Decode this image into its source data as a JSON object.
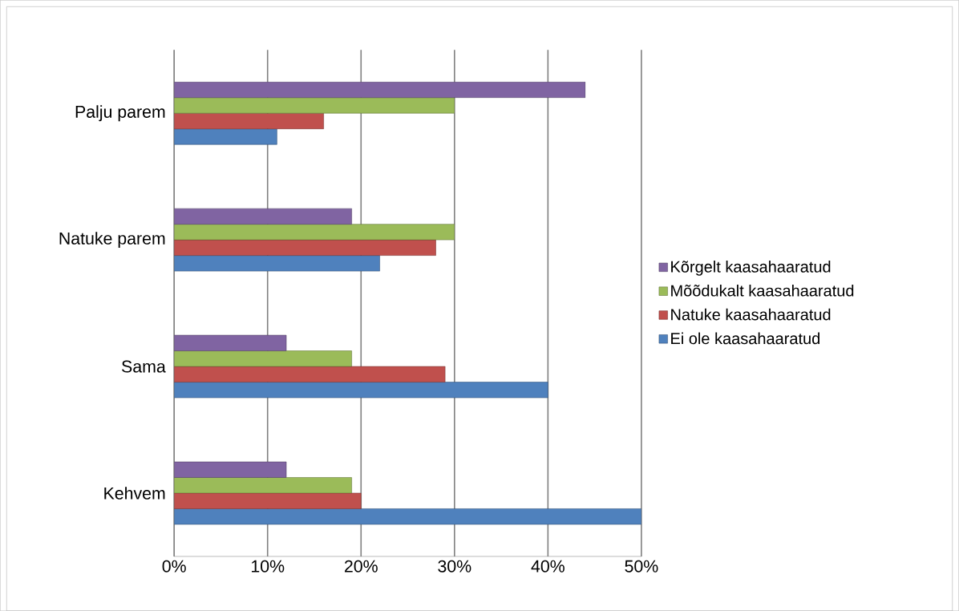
{
  "chart_data": {
    "type": "bar",
    "orientation": "horizontal",
    "categories": [
      "Palju parem",
      "Natuke parem",
      "Sama",
      "Kehvem"
    ],
    "series": [
      {
        "name": "Ei ole kaasahaaratud",
        "color": "#4f81bd",
        "values": [
          11,
          22,
          40,
          50
        ]
      },
      {
        "name": "Natuke kaasahaaratud",
        "color": "#c0504d",
        "values": [
          16,
          28,
          29,
          20
        ]
      },
      {
        "name": "Mõõdukalt kaasahaaratud",
        "color": "#9bbb59",
        "values": [
          30,
          30,
          19,
          19
        ]
      },
      {
        "name": "Kõrgelt kaasahaaratud",
        "color": "#8064a2",
        "values": [
          44,
          19,
          12,
          12
        ]
      }
    ],
    "xlim": [
      0,
      50
    ],
    "xticks": [
      {
        "value": 0,
        "label": "0%"
      },
      {
        "value": 10,
        "label": "10%"
      },
      {
        "value": 20,
        "label": "20%"
      },
      {
        "value": 30,
        "label": "30%"
      },
      {
        "value": 40,
        "label": "40%"
      },
      {
        "value": 50,
        "label": "50%"
      }
    ],
    "grid": "x",
    "legend": "right"
  }
}
